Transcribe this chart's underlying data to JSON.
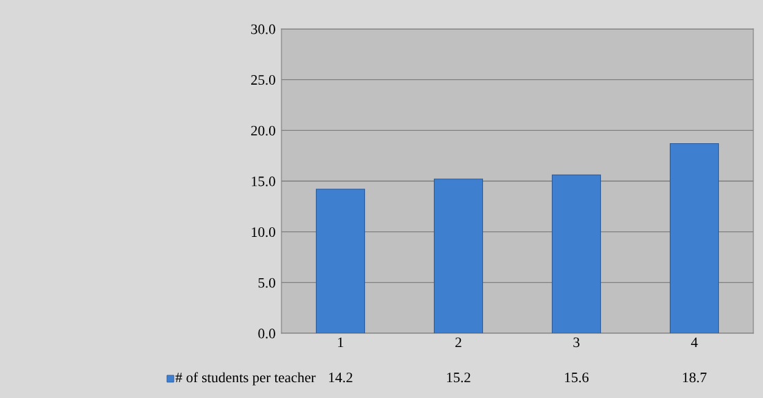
{
  "chart_data": {
    "type": "bar",
    "categories": [
      "1",
      "2",
      "3",
      "4"
    ],
    "series": [
      {
        "name": "# of students per teacher",
        "color": "#3f7fd0",
        "values": [
          14.2,
          15.2,
          15.6,
          18.7
        ]
      }
    ],
    "ylim": [
      0,
      30
    ],
    "yticks": [
      {
        "value": 0,
        "label": "0.0"
      },
      {
        "value": 5,
        "label": "5.0"
      },
      {
        "value": 10,
        "label": "10.0"
      },
      {
        "value": 15,
        "label": "15.0"
      },
      {
        "value": 20,
        "label": "20.0"
      },
      {
        "value": 25,
        "label": "25.0"
      },
      {
        "value": 30,
        "label": "30.0"
      }
    ],
    "grid": "y",
    "data_labels": true,
    "legend": "bottom left"
  }
}
